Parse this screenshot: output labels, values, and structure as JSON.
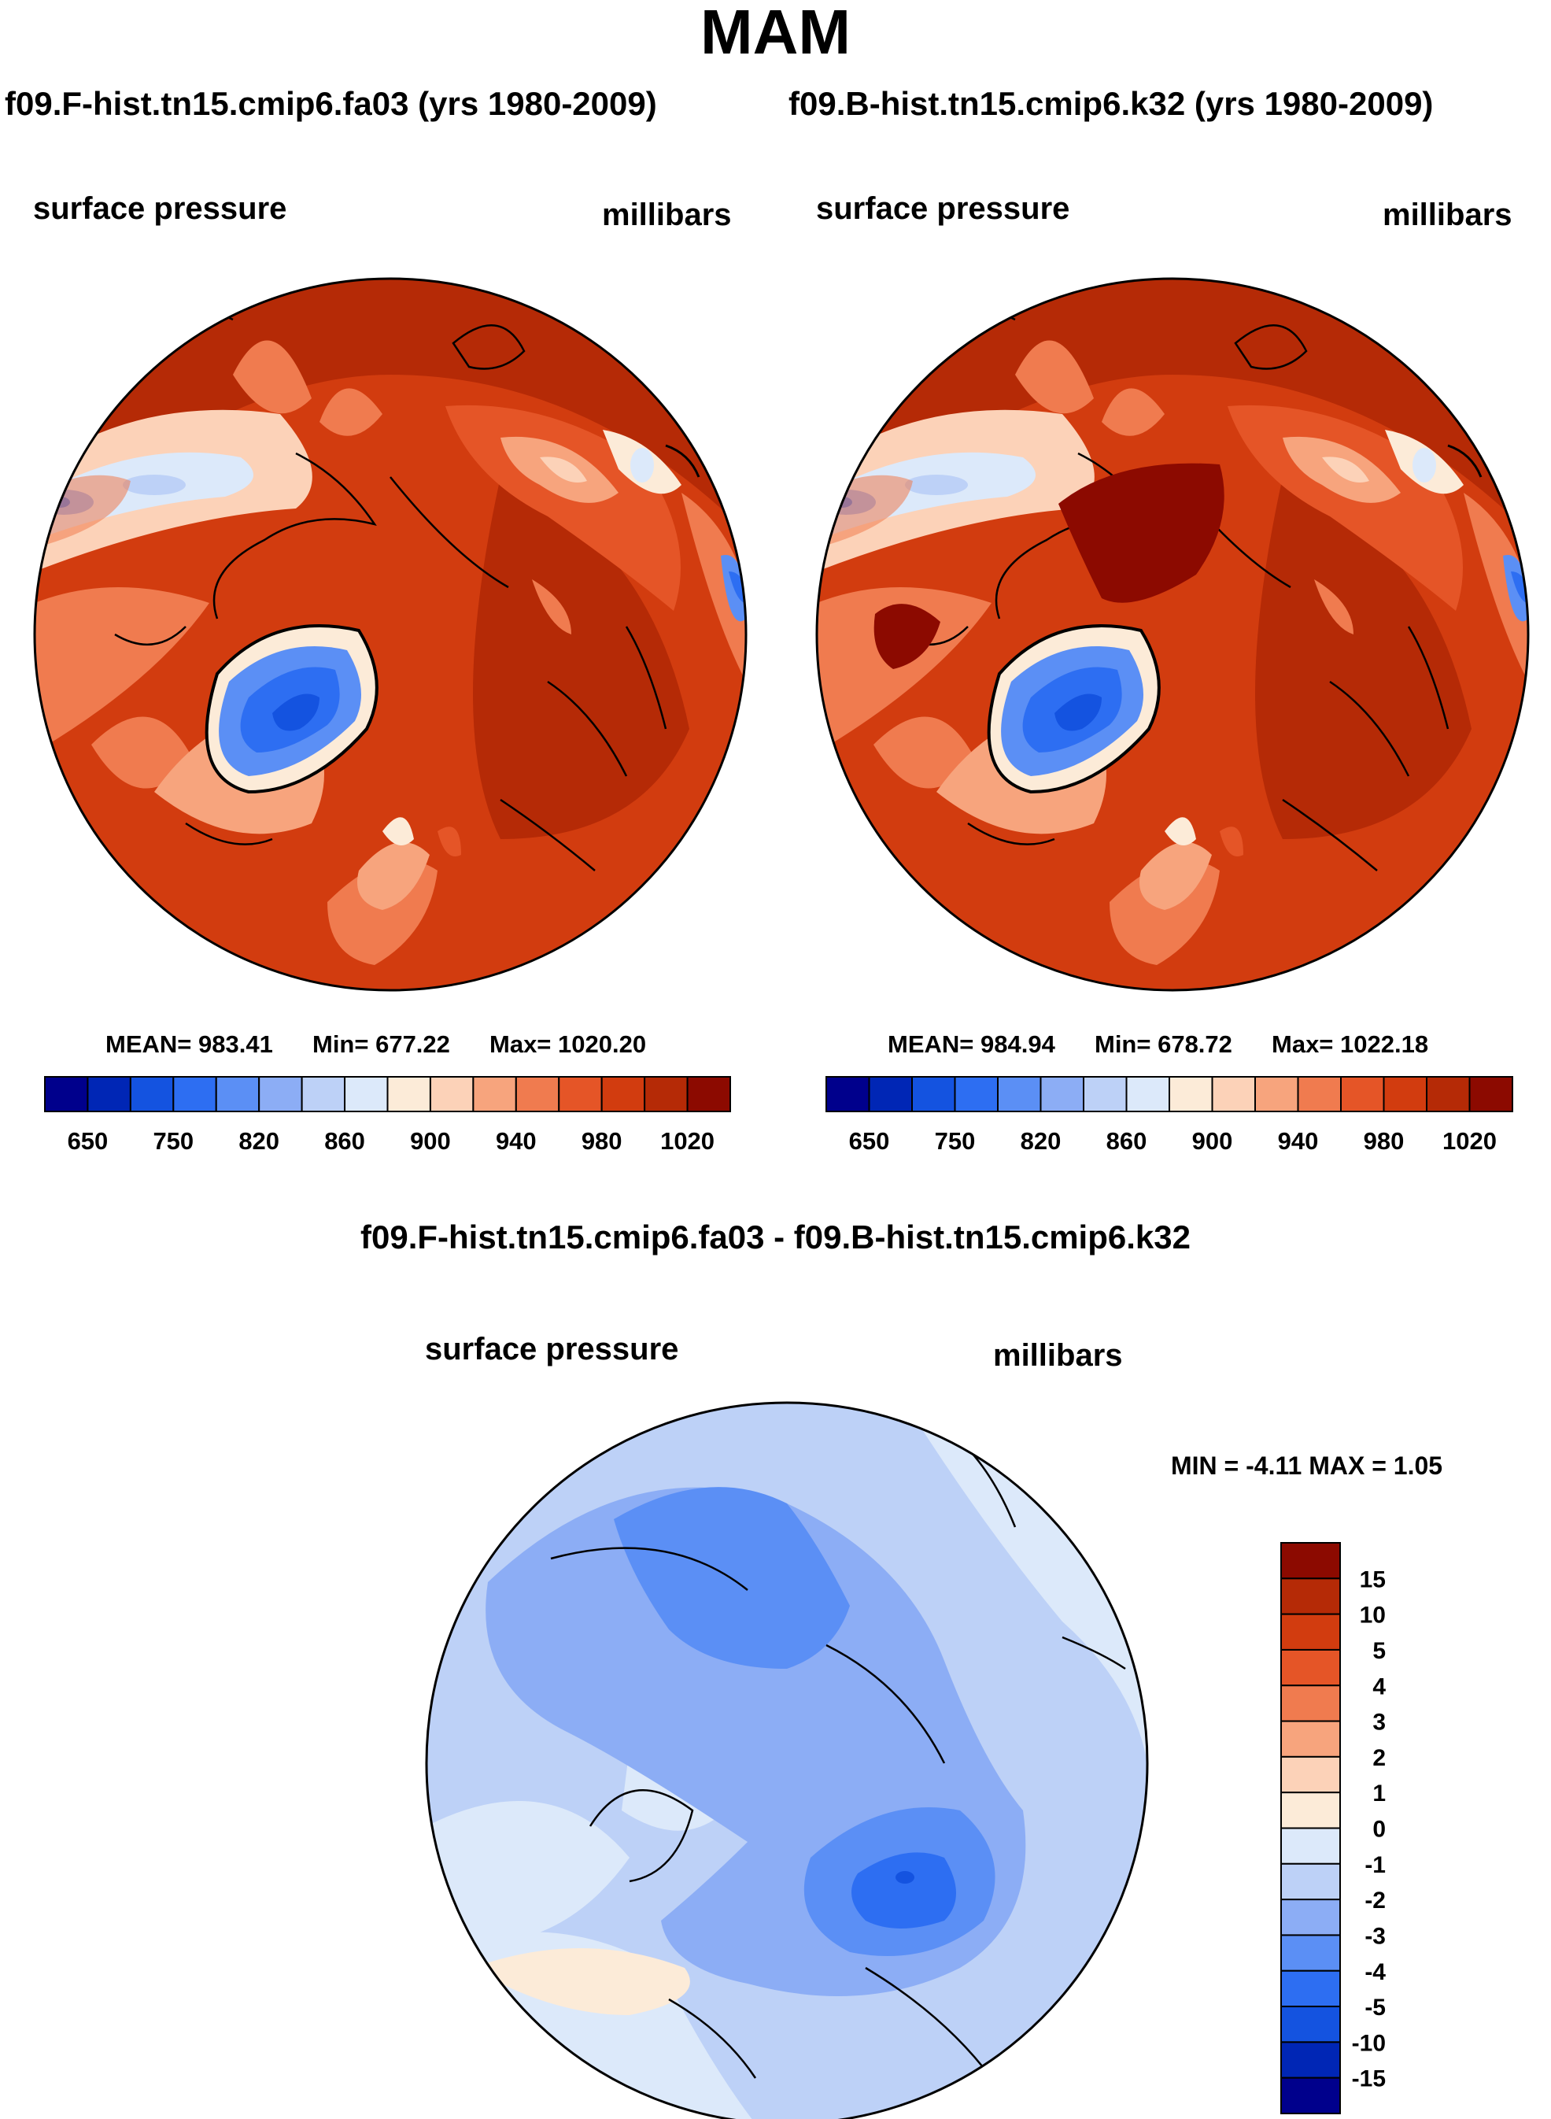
{
  "title": "MAM",
  "panels": {
    "left": {
      "case": "f09.F-hist.tn15.cmip6.fa03 (yrs 1980-2009)",
      "variable": "surface pressure",
      "units": "millibars",
      "mean_label": "MEAN= 983.41",
      "min_label": "Min= 677.22",
      "max_label": "Max= 1020.20"
    },
    "right": {
      "case": "f09.B-hist.tn15.cmip6.k32 (yrs 1980-2009)",
      "variable": "surface pressure",
      "units": "millibars",
      "mean_label": "MEAN= 984.94",
      "min_label": "Min= 678.72",
      "max_label": "Max= 1022.18"
    },
    "diff": {
      "title": "f09.F-hist.tn15.cmip6.fa03 - f09.B-hist.tn15.cmip6.k32",
      "variable": "surface pressure",
      "units": "millibars",
      "minmax_label": "MIN =  -4.11 MAX =   1.05"
    }
  },
  "colorbar_abs": {
    "colors": [
      "#00008c",
      "#0026b5",
      "#1453e0",
      "#2d6ef2",
      "#5b8ff5",
      "#8cadf5",
      "#bdd1f7",
      "#dce9fa",
      "#fcebd8",
      "#fcd2b8",
      "#f7a47d",
      "#f07b4f",
      "#e55527",
      "#d23c0f",
      "#b52a06",
      "#8c0a00"
    ],
    "labels": [
      "650",
      "750",
      "820",
      "860",
      "900",
      "940",
      "980",
      "1020"
    ]
  },
  "colorbar_diff": {
    "colors": [
      "#8c0a00",
      "#b52a06",
      "#d23c0f",
      "#e55527",
      "#f07b4f",
      "#f7a47d",
      "#fcd2b8",
      "#fcebd8",
      "#dce9fa",
      "#bdd1f7",
      "#8cadf5",
      "#5b8ff5",
      "#2d6ef2",
      "#1453e0",
      "#0026b5",
      "#00008c"
    ],
    "labels": [
      "15",
      "10",
      "5",
      "4",
      "3",
      "2",
      "1",
      "0",
      "-1",
      "-2",
      "-3",
      "-4",
      "-5",
      "-10",
      "-15"
    ]
  }
}
